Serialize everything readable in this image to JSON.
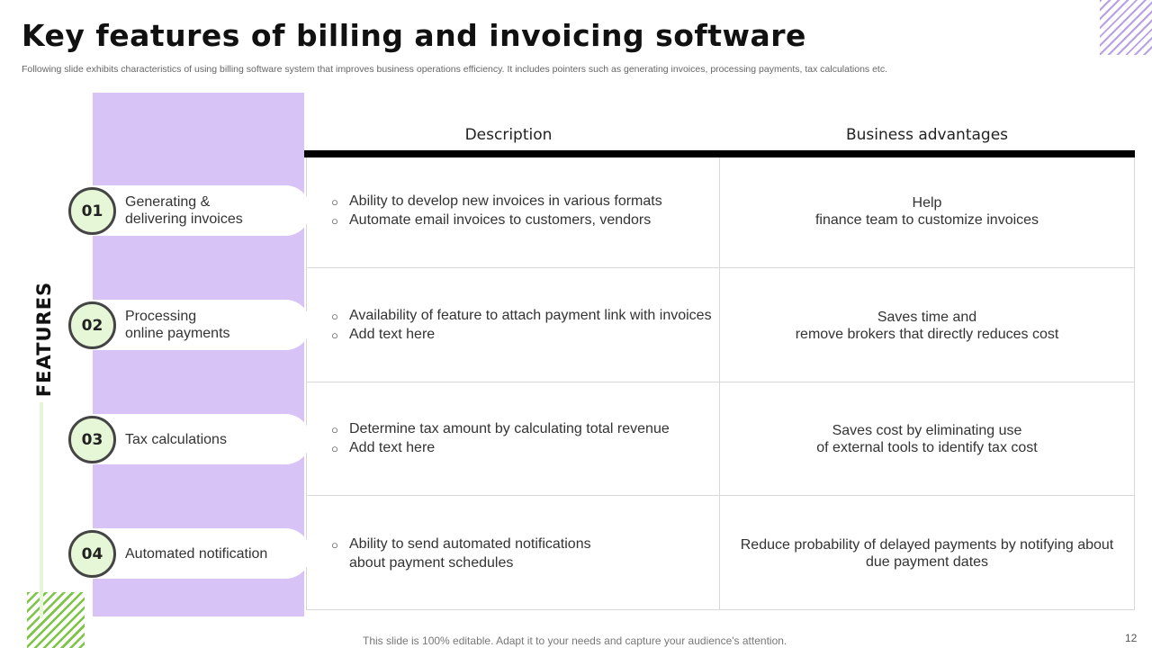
{
  "title": "Key features of billing and invoicing software",
  "subtitle": "Following slide exhibits characteristics of using billing software system that improves business operations efficiency. It includes pointers such as generating invoices, processing payments, tax calculations etc.",
  "side_label": "FEATURES",
  "headers": {
    "description": "Description",
    "advantages": "Business advantages"
  },
  "features": [
    {
      "num": "01",
      "name_line1": "Generating &",
      "name_line2": "delivering invoices",
      "desc": [
        "Ability to develop new invoices in various formats",
        "Automate email invoices to customers, vendors"
      ],
      "adv_line1": "Help",
      "adv_line2": "finance team to customize invoices"
    },
    {
      "num": "02",
      "name_line1": "Processing",
      "name_line2": "online payments",
      "desc": [
        "Availability of feature to attach payment link with invoices",
        "Add text here"
      ],
      "adv_line1": "Saves time and",
      "adv_line2": "remove brokers that directly reduces cost"
    },
    {
      "num": "03",
      "name_line1": "Tax calculations",
      "name_line2": "",
      "desc": [
        "Determine tax amount by calculating total revenue",
        "Add text here"
      ],
      "adv_line1": "Saves cost by eliminating use",
      "adv_line2": "of external tools to identify tax cost"
    },
    {
      "num": "04",
      "name_line1": "Automated notification",
      "name_line2": "",
      "desc": [
        "Ability to send automated notifications",
        "about payment schedules"
      ],
      "adv_line1": "Reduce probability of delayed payments by notifying about",
      "adv_line2": "due payment dates"
    }
  ],
  "bullet_symbol": "○",
  "footer": "This slide is 100% editable. Adapt it to your needs and capture your audience's attention.",
  "page_number": "12",
  "colors": {
    "purple": "#d8c3f6",
    "green": "#e6f7d8",
    "hatch_green": "#7cc443",
    "hatch_purple": "#b8a0e6"
  }
}
